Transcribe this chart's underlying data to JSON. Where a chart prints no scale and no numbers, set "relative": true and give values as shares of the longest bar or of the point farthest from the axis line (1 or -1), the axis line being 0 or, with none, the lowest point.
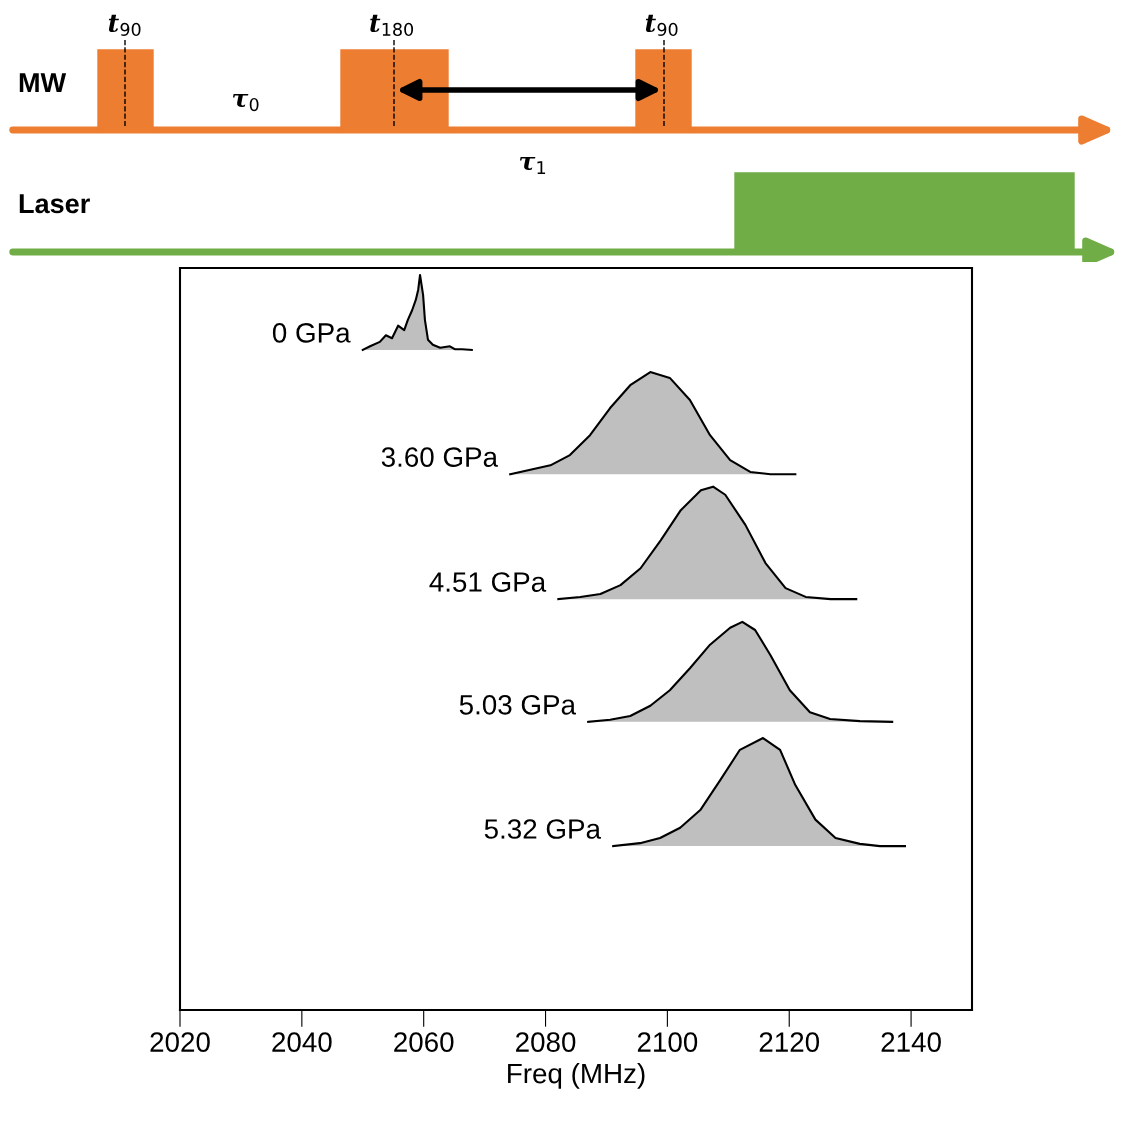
{
  "chart_data": {
    "type": "area",
    "relative": true,
    "xlabel": "Freq (MHz)",
    "xlim": [
      2020,
      2150
    ],
    "xticks": [
      2020,
      2040,
      2060,
      2080,
      2100,
      2120,
      2140
    ],
    "grid": false,
    "annotations": [
      "MW",
      "Laser",
      "t$_{90}$",
      "τ$_{0}$",
      "t$_{180}$",
      "t$_{90}$",
      "τ$_{1}$"
    ],
    "series": [
      {
        "name": "0 GPa",
        "color": "#bfbfbf",
        "x": [
          2050.0,
          2051.2,
          2052.8,
          2053.8,
          2054.8,
          2055.8,
          2056.8,
          2057.4,
          2058.1,
          2058.7,
          2059.1,
          2059.4,
          2059.9,
          2060.2,
          2060.7,
          2061.5,
          2062.7,
          2064.3,
          2065.1,
          2066.3,
          2067.9
        ],
        "values": [
          0.898,
          0.903,
          0.909,
          0.918,
          0.914,
          0.931,
          0.925,
          0.939,
          0.952,
          0.966,
          0.98,
          1.0,
          0.973,
          0.939,
          0.912,
          0.905,
          0.901,
          0.903,
          0.899,
          0.899,
          0.898
        ]
      },
      {
        "name": "3.60 GPa",
        "color": "#bfbfbf",
        "x": [
          2074.2,
          2077.5,
          2080.8,
          2084.0,
          2087.3,
          2090.6,
          2093.9,
          2097.2,
          2100.4,
          2103.7,
          2107.0,
          2110.3,
          2113.6,
          2116.9,
          2121.0
        ],
        "values": [
          0.729,
          0.735,
          0.741,
          0.755,
          0.782,
          0.819,
          0.85,
          0.868,
          0.86,
          0.83,
          0.782,
          0.748,
          0.732,
          0.729,
          0.729
        ]
      },
      {
        "name": "4.51 GPa",
        "color": "#bfbfbf",
        "x": [
          2082.1,
          2085.7,
          2089.0,
          2092.3,
          2095.6,
          2098.9,
          2102.2,
          2105.5,
          2107.5,
          2109.5,
          2112.8,
          2116.1,
          2119.4,
          2122.7,
          2126.8,
          2131.0
        ],
        "values": [
          0.559,
          0.562,
          0.566,
          0.578,
          0.601,
          0.639,
          0.68,
          0.707,
          0.712,
          0.701,
          0.66,
          0.608,
          0.574,
          0.562,
          0.559,
          0.559
        ]
      },
      {
        "name": "5.03 GPa",
        "color": "#bfbfbf",
        "x": [
          2087.0,
          2090.6,
          2093.9,
          2097.2,
          2100.4,
          2103.7,
          2107.0,
          2110.3,
          2112.3,
          2114.4,
          2116.9,
          2120.1,
          2123.4,
          2126.7,
          2131.6,
          2136.9
        ],
        "values": [
          0.392,
          0.395,
          0.4,
          0.414,
          0.435,
          0.465,
          0.497,
          0.52,
          0.528,
          0.517,
          0.483,
          0.435,
          0.405,
          0.396,
          0.393,
          0.392
        ]
      },
      {
        "name": "5.32 GPa",
        "color": "#bfbfbf",
        "x": [
          2091.1,
          2095.5,
          2098.8,
          2102.1,
          2105.4,
          2108.7,
          2111.9,
          2115.7,
          2118.5,
          2121.0,
          2124.3,
          2127.6,
          2131.6,
          2134.9,
          2139.0
        ],
        "values": [
          0.223,
          0.227,
          0.234,
          0.248,
          0.272,
          0.313,
          0.354,
          0.37,
          0.354,
          0.306,
          0.259,
          0.234,
          0.226,
          0.223,
          0.223
        ]
      }
    ]
  }
}
